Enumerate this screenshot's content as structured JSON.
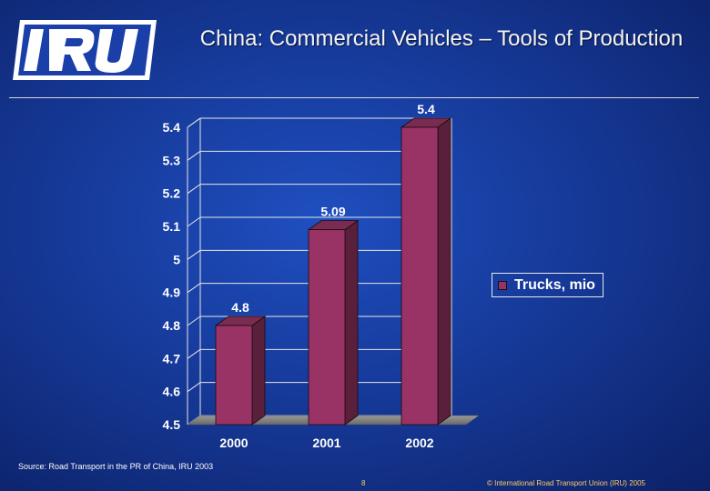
{
  "header": {
    "logo_text": "IRU",
    "title": "China: Commercial Vehicles – Tools of Production"
  },
  "chart_data": {
    "type": "bar",
    "categories": [
      "2000",
      "2001",
      "2002"
    ],
    "series": [
      {
        "name": "Trucks, mio",
        "values": [
          4.8,
          5.09,
          5.4
        ]
      }
    ],
    "data_labels": [
      "4.8",
      "5.09",
      "5.4"
    ],
    "y_ticks": [
      "4.5",
      "4.6",
      "4.7",
      "4.8",
      "4.9",
      "5",
      "5.1",
      "5.2",
      "5.3",
      "5.4"
    ],
    "ylim": [
      4.5,
      5.4
    ],
    "grid": true,
    "legend_position": "right",
    "bar_color": "#993366",
    "three_d": true
  },
  "legend": {
    "label": "Trucks, mio"
  },
  "footer": {
    "source": "Source: Road Transport in the PR of China, IRU 2003",
    "page": "8",
    "copyright": "© International Road Transport Union (IRU) 2005"
  }
}
